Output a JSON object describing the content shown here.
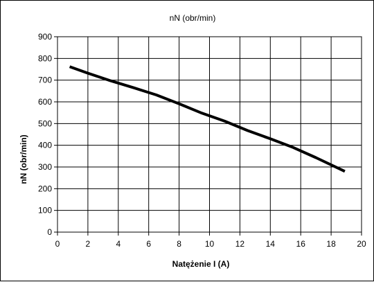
{
  "chart_data": {
    "type": "line",
    "title": "nN (obr/min)",
    "xlabel": "Natężenie I (A)",
    "ylabel": "nN (obr/min)",
    "xlim": [
      0,
      20
    ],
    "ylim": [
      0,
      900
    ],
    "x_ticks": [
      0,
      2,
      4,
      6,
      8,
      10,
      12,
      14,
      16,
      18,
      20
    ],
    "y_ticks": [
      0,
      100,
      200,
      300,
      400,
      500,
      600,
      700,
      800,
      900
    ],
    "grid": true,
    "legend": "none",
    "series_color": "#000000",
    "grid_color": "#000000",
    "series": [
      {
        "x": [
          0.8,
          2.0,
          3.5,
          5.0,
          6.5,
          8.0,
          9.5,
          11.0,
          12.5,
          14.0,
          15.5,
          17.0,
          18.9
        ],
        "values": [
          762,
          732,
          697,
          665,
          632,
          591,
          548,
          511,
          468,
          430,
          390,
          343,
          280
        ]
      }
    ]
  }
}
